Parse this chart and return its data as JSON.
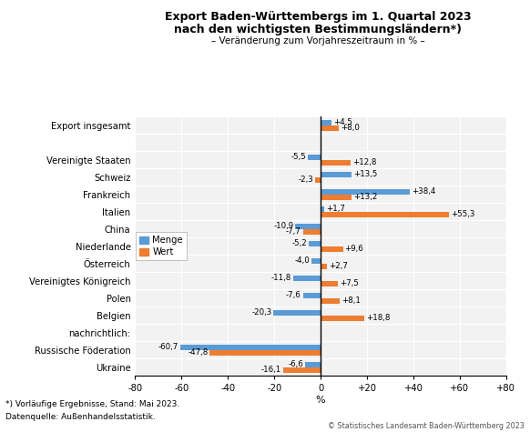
{
  "title_line1": "Export Baden-Württembergs im 1. Quartal 2023",
  "title_line2": "nach den wichtigsten Bestimmungsländern*)",
  "subtitle": "– Veränderung zum Vorjahreszeitraum in % –",
  "categories": [
    "Ukraine",
    "Russische Föderation",
    "nachrichtlich:",
    "Belgien",
    "Polen",
    "Vereinigtes Königreich",
    "Österreich",
    "Niederlande",
    "China",
    "Italien",
    "Frankreich",
    "Schweiz",
    "Vereinigte Staaten",
    "",
    "Export insgesamt"
  ],
  "menge": [
    -6.6,
    -60.7,
    null,
    -20.3,
    -7.6,
    -11.8,
    -4.0,
    -5.2,
    -10.9,
    1.7,
    38.4,
    13.5,
    -5.5,
    null,
    4.5
  ],
  "wert": [
    -16.1,
    -47.8,
    null,
    18.8,
    8.1,
    7.5,
    2.7,
    9.6,
    -7.7,
    55.3,
    13.2,
    -2.3,
    12.8,
    null,
    8.0
  ],
  "menge_labels": [
    "-6,6",
    "-60,7",
    "",
    "-20,3",
    "-7,6",
    "-11,8",
    "-4,0",
    "-5,2",
    "-10,9",
    "+1,7",
    "+38,4",
    "+13,5",
    "-5,5",
    "",
    "+4,5"
  ],
  "wert_labels": [
    "-16,1",
    "-47,8",
    "",
    "+18,8",
    "+8,1",
    "+7,5",
    "+2,7",
    "+9,6",
    "-7,7",
    "+55,3",
    "+13,2",
    "-2,3",
    "+12,8",
    "",
    "+8,0"
  ],
  "color_menge": "#5B9BD5",
  "color_wert": "#ED7D31",
  "xlim": [
    -80,
    80
  ],
  "xticks": [
    -80,
    -60,
    -40,
    -20,
    0,
    20,
    40,
    60,
    80
  ],
  "xtick_labels": [
    "-80",
    "-60",
    "-40",
    "-20",
    "0",
    "+20",
    "+40",
    "+60",
    "+80"
  ],
  "xlabel": "%",
  "footnote1": "*) Vorläufige Ergebnisse, Stand: Mai 2023.",
  "footnote2": "Datenquelle: Außenhandelsstatistik.",
  "copyright": "© Statistisches Landesamt Baden-Württemberg 2023",
  "legend_menge": "Menge",
  "legend_wert": "Wert",
  "bg_color": "#F2F2F2"
}
